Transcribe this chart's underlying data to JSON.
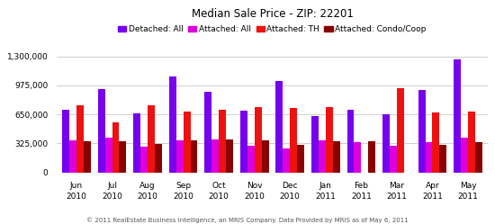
{
  "title": "Median Sale Price - ZIP: 22201",
  "footer": "© 2011 RealEstate Business Intelligence, an MRIS Company. Data Provided by MRIS as of May 6, 2011",
  "months": [
    "Jun",
    "Jul",
    "Aug",
    "Sep",
    "Oct",
    "Nov",
    "Dec",
    "Jan",
    "Feb",
    "Mar",
    "Apr",
    "May"
  ],
  "years": [
    "2010",
    "2010",
    "2010",
    "2010",
    "2010",
    "2010",
    "2010",
    "2011",
    "2011",
    "2011",
    "2011",
    "2011"
  ],
  "series": {
    "Detached: All": [
      700000,
      930000,
      660000,
      1080000,
      900000,
      690000,
      1030000,
      630000,
      700000,
      650000,
      920000,
      1270000
    ],
    "Attached: All": [
      360000,
      390000,
      285000,
      360000,
      375000,
      295000,
      265000,
      365000,
      335000,
      300000,
      335000,
      395000
    ],
    "Attached: TH": [
      750000,
      560000,
      755000,
      680000,
      700000,
      730000,
      720000,
      730000,
      0,
      940000,
      675000,
      680000
    ],
    "Attached: Condo/Coop": [
      350000,
      350000,
      315000,
      365000,
      368000,
      355000,
      305000,
      345000,
      350000,
      0,
      305000,
      340000
    ]
  },
  "colors": {
    "Detached: All": "#7700ee",
    "Attached: All": "#dd00dd",
    "Attached: TH": "#ee1111",
    "Attached: Condo/Coop": "#880000"
  },
  "legend_order": [
    "Detached: All",
    "Attached: All",
    "Attached: TH",
    "Attached: Condo/Coop"
  ],
  "ylim": [
    0,
    1430000
  ],
  "yticks": [
    0,
    325000,
    650000,
    975000,
    1300000
  ],
  "ytick_labels": [
    "0",
    "325,000",
    "650,000",
    "975,000",
    "1,300,000"
  ],
  "bar_width": 0.2,
  "background_color": "#ffffff",
  "grid_color": "#bbbbbb",
  "title_fontsize": 8.5,
  "legend_fontsize": 6.5,
  "tick_fontsize": 6.5,
  "footer_fontsize": 5.0
}
